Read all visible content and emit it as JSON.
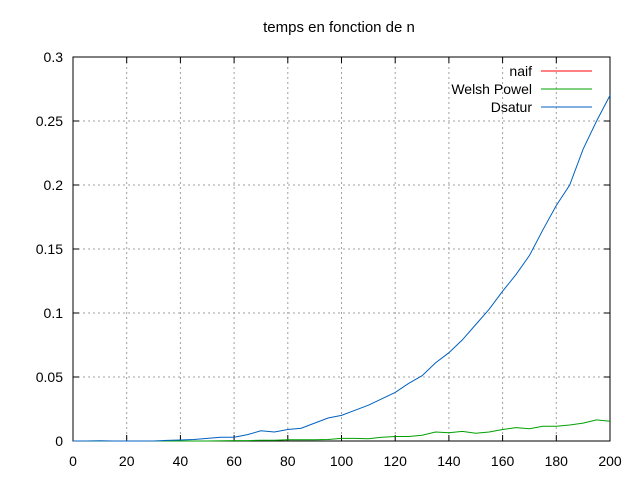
{
  "chart_data": {
    "type": "line",
    "title": "temps en fonction de n",
    "xlabel": "",
    "ylabel": "",
    "xlim": [
      0,
      200
    ],
    "ylim": [
      0,
      0.3
    ],
    "grid": true,
    "legend_position": "top-right",
    "x_ticks": [
      0,
      20,
      40,
      60,
      80,
      100,
      120,
      140,
      160,
      180,
      200
    ],
    "x_tick_labels": [
      "0",
      "20",
      "40",
      "60",
      "80",
      "100",
      "120",
      "140",
      "160",
      "180",
      "200"
    ],
    "y_ticks": [
      0,
      0.05,
      0.1,
      0.15,
      0.2,
      0.25,
      0.3
    ],
    "y_tick_labels": [
      "0",
      "0.05",
      "0.1",
      "0.15",
      "0.2",
      "0.25",
      "0.3"
    ],
    "series": [
      {
        "name": "naif",
        "color": "#ff0000",
        "x": [],
        "y": []
      },
      {
        "name": "Welsh Powel",
        "color": "#00a000",
        "x": [
          0,
          10,
          20,
          30,
          40,
          50,
          60,
          65,
          70,
          75,
          80,
          85,
          90,
          95,
          100,
          105,
          110,
          115,
          120,
          125,
          130,
          135,
          140,
          145,
          150,
          155,
          160,
          165,
          170,
          175,
          180,
          185,
          190,
          195,
          200
        ],
        "y": [
          0,
          0,
          0,
          0,
          0,
          0,
          0.0003,
          0.0003,
          0.0006,
          0.0006,
          0.001,
          0.001,
          0.001,
          0.0012,
          0.002,
          0.002,
          0.0018,
          0.003,
          0.0035,
          0.0035,
          0.0045,
          0.007,
          0.0065,
          0.0075,
          0.006,
          0.007,
          0.009,
          0.0105,
          0.0095,
          0.0115,
          0.0115,
          0.0125,
          0.014,
          0.0165,
          0.0155
        ]
      },
      {
        "name": "Dsatur",
        "color": "#0060c0",
        "x": [
          0,
          5,
          10,
          15,
          20,
          25,
          30,
          35,
          40,
          45,
          50,
          55,
          60,
          65,
          70,
          75,
          80,
          85,
          90,
          95,
          100,
          105,
          110,
          115,
          120,
          125,
          130,
          135,
          140,
          145,
          150,
          155,
          160,
          165,
          170,
          175,
          180,
          185,
          190,
          195,
          200
        ],
        "y": [
          0,
          0,
          0.0002,
          0,
          0,
          0,
          0,
          0.0005,
          0.0008,
          0.0012,
          0.002,
          0.003,
          0.003,
          0.005,
          0.008,
          0.007,
          0.009,
          0.01,
          0.014,
          0.018,
          0.02,
          0.024,
          0.028,
          0.033,
          0.038,
          0.045,
          0.051,
          0.061,
          0.069,
          0.079,
          0.091,
          0.103,
          0.117,
          0.13,
          0.145,
          0.165,
          0.184,
          0.2,
          0.228,
          0.25,
          0.27
        ]
      }
    ]
  }
}
